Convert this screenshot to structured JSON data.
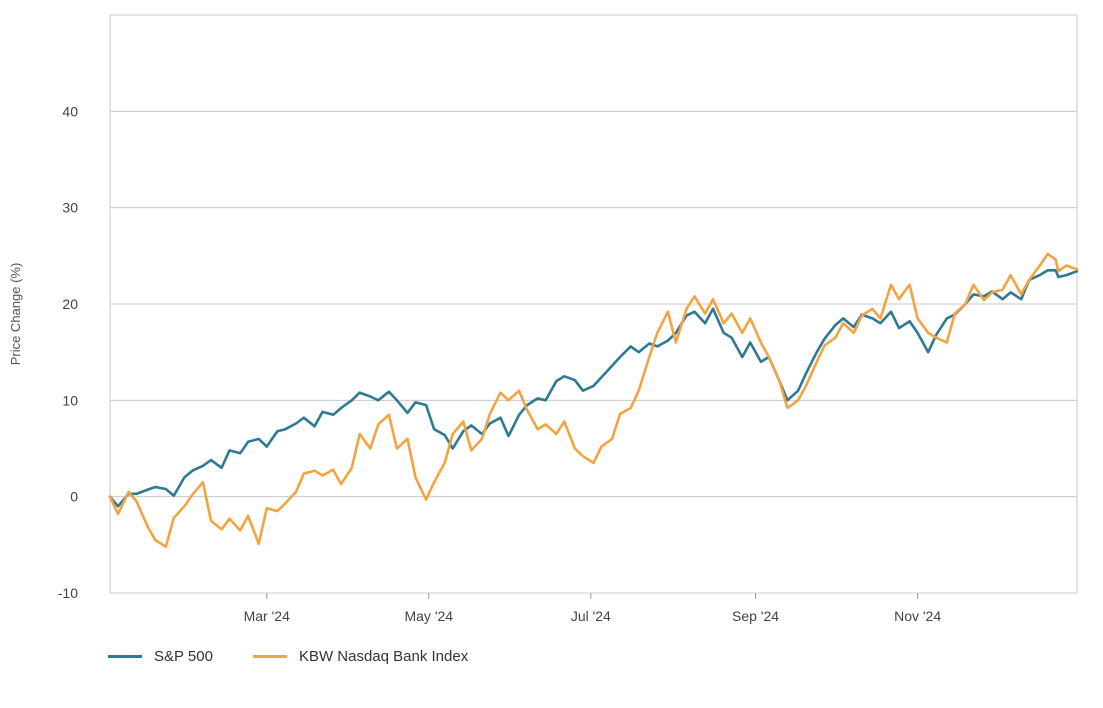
{
  "chart_data": {
    "type": "line",
    "title": "",
    "xlabel": "",
    "ylabel": "Price Change (%)",
    "ylim": [
      -10,
      50
    ],
    "yticks": [
      -10,
      0,
      10,
      20,
      30,
      40
    ],
    "xlim": [
      "2024-01-02",
      "2024-12-31"
    ],
    "xticks": [
      {
        "date": "2024-03-01",
        "label": "Mar '24"
      },
      {
        "date": "2024-05-01",
        "label": "May '24"
      },
      {
        "date": "2024-07-01",
        "label": "Jul '24"
      },
      {
        "date": "2024-09-01",
        "label": "Sep '24"
      },
      {
        "date": "2024-11-01",
        "label": "Nov '24"
      }
    ],
    "grid": "horizontal",
    "legend_position": "bottom-left",
    "series": [
      {
        "name": "S&P 500",
        "color": "#2d7a94",
        "points": [
          [
            "2024-01-02",
            0
          ],
          [
            "2024-01-05",
            -1
          ],
          [
            "2024-01-09",
            0.3
          ],
          [
            "2024-01-12",
            0.3
          ],
          [
            "2024-01-16",
            0.7
          ],
          [
            "2024-01-19",
            1
          ],
          [
            "2024-01-23",
            0.8
          ],
          [
            "2024-01-26",
            0.1
          ],
          [
            "2024-01-30",
            2
          ],
          [
            "2024-02-02",
            2.7
          ],
          [
            "2024-02-06",
            3.2
          ],
          [
            "2024-02-09",
            3.8
          ],
          [
            "2024-02-13",
            3
          ],
          [
            "2024-02-16",
            4.8
          ],
          [
            "2024-02-20",
            4.5
          ],
          [
            "2024-02-23",
            5.7
          ],
          [
            "2024-02-27",
            6
          ],
          [
            "2024-03-01",
            5.2
          ],
          [
            "2024-03-05",
            6.8
          ],
          [
            "2024-03-08",
            7
          ],
          [
            "2024-03-12",
            7.6
          ],
          [
            "2024-03-15",
            8.2
          ],
          [
            "2024-03-19",
            7.3
          ],
          [
            "2024-03-22",
            8.8
          ],
          [
            "2024-03-26",
            8.5
          ],
          [
            "2024-03-29",
            9.2
          ],
          [
            "2024-04-02",
            10
          ],
          [
            "2024-04-05",
            10.8
          ],
          [
            "2024-04-09",
            10.4
          ],
          [
            "2024-04-12",
            10
          ],
          [
            "2024-04-16",
            10.9
          ],
          [
            "2024-04-19",
            10
          ],
          [
            "2024-04-23",
            8.7
          ],
          [
            "2024-04-26",
            9.8
          ],
          [
            "2024-04-30",
            9.5
          ],
          [
            "2024-05-03",
            7
          ],
          [
            "2024-05-07",
            6.4
          ],
          [
            "2024-05-10",
            5
          ],
          [
            "2024-05-14",
            6.8
          ],
          [
            "2024-05-17",
            7.4
          ],
          [
            "2024-05-21",
            6.5
          ],
          [
            "2024-05-24",
            7.6
          ],
          [
            "2024-05-28",
            8.2
          ],
          [
            "2024-05-31",
            6.3
          ],
          [
            "2024-06-04",
            8.5
          ],
          [
            "2024-06-07",
            9.5
          ],
          [
            "2024-06-11",
            10.2
          ],
          [
            "2024-06-14",
            10
          ],
          [
            "2024-06-18",
            12
          ],
          [
            "2024-06-21",
            12.5
          ],
          [
            "2024-06-25",
            12.1
          ],
          [
            "2024-06-28",
            11
          ],
          [
            "2024-07-02",
            11.5
          ],
          [
            "2024-07-05",
            12.4
          ],
          [
            "2024-07-09",
            13.6
          ],
          [
            "2024-07-12",
            14.5
          ],
          [
            "2024-07-16",
            15.6
          ],
          [
            "2024-07-19",
            15
          ],
          [
            "2024-07-23",
            15.9
          ],
          [
            "2024-07-26",
            15.6
          ],
          [
            "2024-07-30",
            16.2
          ],
          [
            "2024-08-02",
            17
          ],
          [
            "2024-08-06",
            18.8
          ],
          [
            "2024-08-09",
            19.2
          ],
          [
            "2024-08-13",
            18
          ],
          [
            "2024-08-16",
            19.5
          ],
          [
            "2024-08-20",
            17
          ],
          [
            "2024-08-23",
            16.5
          ],
          [
            "2024-08-27",
            14.5
          ],
          [
            "2024-08-30",
            16
          ],
          [
            "2024-09-03",
            14
          ],
          [
            "2024-09-06",
            14.5
          ],
          [
            "2024-09-10",
            12
          ],
          [
            "2024-09-13",
            10
          ],
          [
            "2024-09-17",
            11
          ],
          [
            "2024-09-20",
            12.8
          ],
          [
            "2024-09-24",
            15
          ],
          [
            "2024-09-27",
            16.4
          ],
          [
            "2024-10-01",
            17.8
          ],
          [
            "2024-10-04",
            18.5
          ],
          [
            "2024-10-08",
            17.6
          ],
          [
            "2024-10-11",
            18.9
          ],
          [
            "2024-10-15",
            18.5
          ],
          [
            "2024-10-18",
            18
          ],
          [
            "2024-10-22",
            19.2
          ],
          [
            "2024-10-25",
            17.5
          ],
          [
            "2024-10-29",
            18.2
          ],
          [
            "2024-11-01",
            17
          ],
          [
            "2024-11-05",
            15
          ],
          [
            "2024-11-08",
            16.8
          ],
          [
            "2024-11-12",
            18.5
          ],
          [
            "2024-11-15",
            18.9
          ],
          [
            "2024-11-19",
            20
          ],
          [
            "2024-11-22",
            21
          ],
          [
            "2024-11-26",
            20.8
          ],
          [
            "2024-11-29",
            21.3
          ],
          [
            "2024-12-03",
            20.5
          ],
          [
            "2024-12-06",
            21.2
          ],
          [
            "2024-12-10",
            20.5
          ],
          [
            "2024-12-13",
            22.5
          ],
          [
            "2024-12-17",
            23
          ],
          [
            "2024-12-20",
            23.5
          ],
          [
            "2024-12-23",
            23.5
          ],
          [
            "2024-12-24",
            22.8
          ],
          [
            "2024-12-27",
            23
          ],
          [
            "2024-12-31",
            23.4
          ]
        ]
      },
      {
        "name": "KBW Nasdaq Bank Index",
        "color": "#f4a340",
        "points": [
          [
            "2024-01-02",
            0
          ],
          [
            "2024-01-05",
            -1.8
          ],
          [
            "2024-01-09",
            0.5
          ],
          [
            "2024-01-12",
            -0.5
          ],
          [
            "2024-01-16",
            -3
          ],
          [
            "2024-01-19",
            -4.5
          ],
          [
            "2024-01-23",
            -5.2
          ],
          [
            "2024-01-26",
            -2.2
          ],
          [
            "2024-01-30",
            -1
          ],
          [
            "2024-02-02",
            0.2
          ],
          [
            "2024-02-06",
            1.5
          ],
          [
            "2024-02-09",
            -2.5
          ],
          [
            "2024-02-13",
            -3.4
          ],
          [
            "2024-02-16",
            -2.3
          ],
          [
            "2024-02-20",
            -3.5
          ],
          [
            "2024-02-23",
            -2
          ],
          [
            "2024-02-27",
            -4.9
          ],
          [
            "2024-03-01",
            -1.2
          ],
          [
            "2024-03-05",
            -1.5
          ],
          [
            "2024-03-08",
            -0.7
          ],
          [
            "2024-03-12",
            0.5
          ],
          [
            "2024-03-15",
            2.4
          ],
          [
            "2024-03-19",
            2.7
          ],
          [
            "2024-03-22",
            2.2
          ],
          [
            "2024-03-26",
            2.8
          ],
          [
            "2024-03-29",
            1.3
          ],
          [
            "2024-04-02",
            3
          ],
          [
            "2024-04-05",
            6.5
          ],
          [
            "2024-04-09",
            5
          ],
          [
            "2024-04-12",
            7.5
          ],
          [
            "2024-04-16",
            8.5
          ],
          [
            "2024-04-19",
            5
          ],
          [
            "2024-04-23",
            6
          ],
          [
            "2024-04-26",
            2
          ],
          [
            "2024-04-30",
            -0.3
          ],
          [
            "2024-05-03",
            1.5
          ],
          [
            "2024-05-07",
            3.5
          ],
          [
            "2024-05-10",
            6.5
          ],
          [
            "2024-05-14",
            7.8
          ],
          [
            "2024-05-17",
            4.8
          ],
          [
            "2024-05-21",
            6
          ],
          [
            "2024-05-24",
            8.6
          ],
          [
            "2024-05-28",
            10.8
          ],
          [
            "2024-05-31",
            10
          ],
          [
            "2024-06-04",
            11
          ],
          [
            "2024-06-07",
            9
          ],
          [
            "2024-06-11",
            7
          ],
          [
            "2024-06-14",
            7.5
          ],
          [
            "2024-06-18",
            6.5
          ],
          [
            "2024-06-21",
            7.8
          ],
          [
            "2024-06-25",
            5
          ],
          [
            "2024-06-28",
            4.2
          ],
          [
            "2024-07-02",
            3.5
          ],
          [
            "2024-07-05",
            5.2
          ],
          [
            "2024-07-09",
            6
          ],
          [
            "2024-07-12",
            8.6
          ],
          [
            "2024-07-16",
            9.2
          ],
          [
            "2024-07-19",
            11
          ],
          [
            "2024-07-23",
            14.5
          ],
          [
            "2024-07-26",
            17
          ],
          [
            "2024-07-30",
            19.2
          ],
          [
            "2024-08-02",
            16
          ],
          [
            "2024-08-06",
            19.5
          ],
          [
            "2024-08-09",
            20.8
          ],
          [
            "2024-08-13",
            19
          ],
          [
            "2024-08-16",
            20.5
          ],
          [
            "2024-08-20",
            18
          ],
          [
            "2024-08-23",
            19
          ],
          [
            "2024-08-27",
            17
          ],
          [
            "2024-08-30",
            18.5
          ],
          [
            "2024-09-03",
            16
          ],
          [
            "2024-09-06",
            14.5
          ],
          [
            "2024-09-10",
            12
          ],
          [
            "2024-09-13",
            9.2
          ],
          [
            "2024-09-17",
            10
          ],
          [
            "2024-09-20",
            11.5
          ],
          [
            "2024-09-24",
            14
          ],
          [
            "2024-09-27",
            15.7
          ],
          [
            "2024-10-01",
            16.5
          ],
          [
            "2024-10-04",
            18
          ],
          [
            "2024-10-08",
            17
          ],
          [
            "2024-10-11",
            18.8
          ],
          [
            "2024-10-15",
            19.5
          ],
          [
            "2024-10-18",
            18.5
          ],
          [
            "2024-10-22",
            22
          ],
          [
            "2024-10-25",
            20.5
          ],
          [
            "2024-10-29",
            22
          ],
          [
            "2024-11-01",
            18.5
          ],
          [
            "2024-11-05",
            17
          ],
          [
            "2024-11-08",
            16.5
          ],
          [
            "2024-11-12",
            16
          ],
          [
            "2024-11-15",
            19
          ],
          [
            "2024-11-19",
            20
          ],
          [
            "2024-11-22",
            22
          ],
          [
            "2024-11-26",
            20.4
          ],
          [
            "2024-11-29",
            21.2
          ],
          [
            "2024-12-03",
            21.5
          ],
          [
            "2024-12-06",
            23
          ],
          [
            "2024-12-10",
            21
          ],
          [
            "2024-12-13",
            22.5
          ],
          [
            "2024-12-17",
            24
          ],
          [
            "2024-12-20",
            25.2
          ],
          [
            "2024-12-23",
            24.6
          ],
          [
            "2024-12-24",
            23.4
          ],
          [
            "2024-12-27",
            24
          ],
          [
            "2024-12-31",
            23.6
          ]
        ]
      }
    ]
  }
}
